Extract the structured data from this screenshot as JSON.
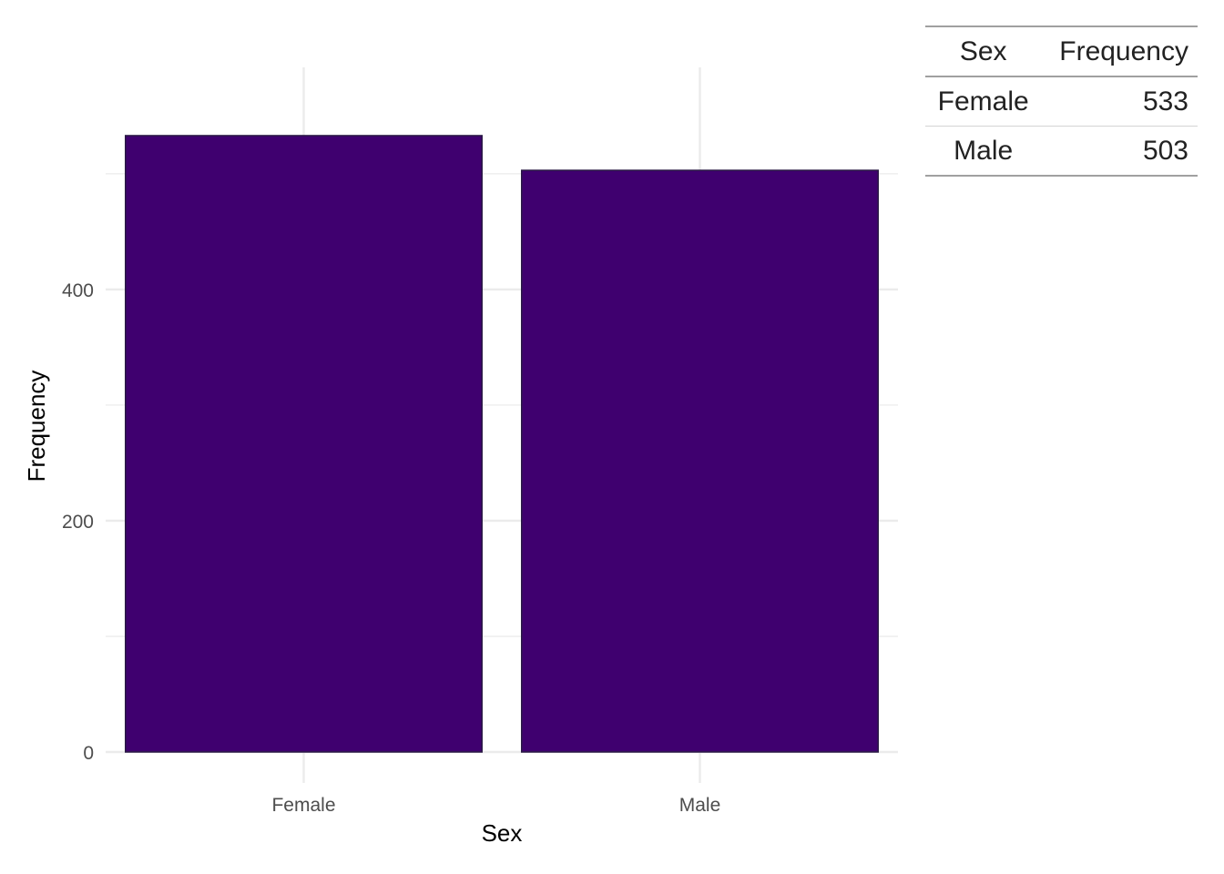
{
  "chart_data": {
    "type": "bar",
    "categories": [
      "Female",
      "Male"
    ],
    "values": [
      533,
      503
    ],
    "xlabel": "Sex",
    "ylabel": "Frequency",
    "ylim": [
      0,
      592
    ],
    "yticks": [
      0,
      200,
      400
    ],
    "y_minor_gridlines": [
      100,
      300,
      500
    ],
    "grid": true,
    "legend": "none",
    "bar_fill": "#3f006f",
    "bar_outline": "#2a1a45",
    "grid_color": "#ebebeb"
  },
  "table": {
    "headers": [
      "Sex",
      "Frequency"
    ],
    "rows": [
      [
        "Female",
        "533"
      ],
      [
        "Male",
        "503"
      ]
    ]
  }
}
